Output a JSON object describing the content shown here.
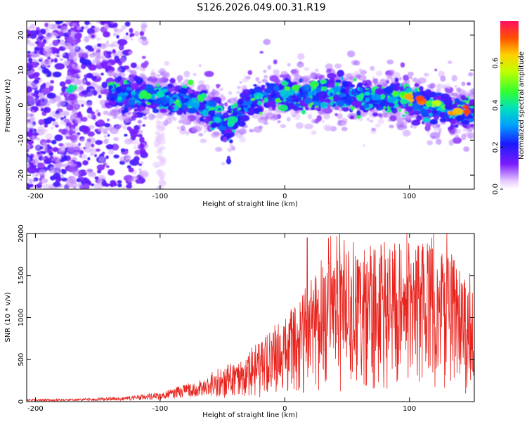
{
  "title": "S126.2026.049.00.31.R19",
  "chart_data": [
    {
      "type": "heatmap",
      "xlabel": "Height of straight line (km)",
      "ylabel": "Frequency (Hz)",
      "xlim": [
        -207,
        152
      ],
      "ylim": [
        -24,
        24
      ],
      "xticks": [
        -200,
        -100,
        0,
        100
      ],
      "yticks": [
        -20,
        -10,
        0,
        10,
        20
      ],
      "colorbar": {
        "label": "Normalized spectral amplitude",
        "range": [
          0,
          0.8
        ],
        "ticks": [
          "0.0",
          "0.2",
          "0.4",
          "0.6"
        ],
        "tick_values": [
          0,
          0.2,
          0.4,
          0.6
        ]
      },
      "ridge": {
        "description_points": [
          {
            "x": -170,
            "y": 5
          },
          {
            "x": -130,
            "y": 3
          },
          {
            "x": -100,
            "y": 2
          },
          {
            "x": -80,
            "y": 1
          },
          {
            "x": -60,
            "y": -1
          },
          {
            "x": -48,
            "y": -5
          },
          {
            "x": -42,
            "y": -5
          },
          {
            "x": -35,
            "y": -1
          },
          {
            "x": -20,
            "y": 2
          },
          {
            "x": 0,
            "y": 3
          },
          {
            "x": 20,
            "y": 3
          },
          {
            "x": 45,
            "y": 3
          },
          {
            "x": 70,
            "y": 2
          },
          {
            "x": 95,
            "y": 2
          },
          {
            "x": 120,
            "y": -1
          },
          {
            "x": 150,
            "y": -2
          }
        ]
      }
    },
    {
      "type": "line",
      "xlabel": "Height of straight line (km)",
      "ylabel": "SNR (10 * v/v)",
      "xlim": [
        -207,
        152
      ],
      "ylim": [
        0,
        2000
      ],
      "xticks": [
        -200,
        -100,
        0,
        100
      ],
      "yticks": [
        0,
        500,
        1000,
        1500,
        2000
      ],
      "series": [
        {
          "name": "SNR",
          "color": "#e8221c",
          "envelope_points": [
            {
              "x": -207,
              "y": 20
            },
            {
              "x": -170,
              "y": 25
            },
            {
              "x": -130,
              "y": 40
            },
            {
              "x": -100,
              "y": 80
            },
            {
              "x": -80,
              "y": 150
            },
            {
              "x": -60,
              "y": 220
            },
            {
              "x": -40,
              "y": 300
            },
            {
              "x": -20,
              "y": 450
            },
            {
              "x": 0,
              "y": 650
            },
            {
              "x": 20,
              "y": 900
            },
            {
              "x": 40,
              "y": 1100
            },
            {
              "x": 60,
              "y": 1150
            },
            {
              "x": 80,
              "y": 1200
            },
            {
              "x": 100,
              "y": 1200
            },
            {
              "x": 120,
              "y": 1200
            },
            {
              "x": 140,
              "y": 1050
            },
            {
              "x": 152,
              "y": 700
            }
          ],
          "peaks": [
            {
              "x": 18,
              "y": 1950
            },
            {
              "x": 35,
              "y": 1950
            },
            {
              "x": 55,
              "y": 1900
            },
            {
              "x": 80,
              "y": 1900
            },
            {
              "x": 118,
              "y": 1950
            },
            {
              "x": 130,
              "y": 2000
            }
          ]
        }
      ]
    }
  ]
}
